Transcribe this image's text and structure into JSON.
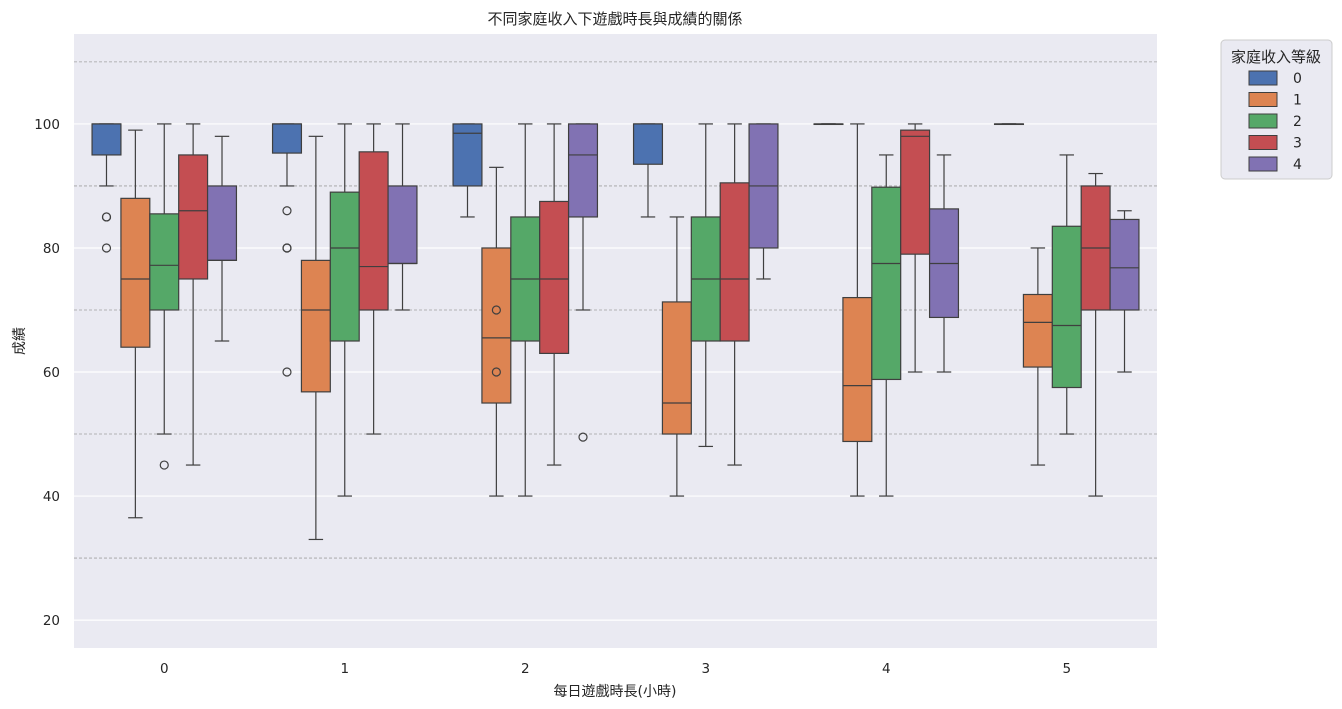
{
  "chart_data": {
    "type": "box",
    "title": "不同家庭收入下遊戲時長與成績的關係",
    "xlabel": "每日遊戲時長(小時)",
    "ylabel": "成績",
    "categories": [
      "0",
      "1",
      "2",
      "3",
      "4",
      "5"
    ],
    "ylim": [
      15.5,
      114.5
    ],
    "yticks": [
      20,
      40,
      60,
      80,
      100
    ],
    "extra_dashed_gridlines": [
      30,
      50,
      70,
      90,
      110
    ],
    "grid": true,
    "legend": {
      "title": "家庭收入等級",
      "position": "outside-top-right",
      "entries": [
        "0",
        "1",
        "2",
        "3",
        "4"
      ]
    },
    "series": [
      {
        "name": "0",
        "color": "#4c72b0",
        "boxes": [
          {
            "whisker_low": 90,
            "q1": 95,
            "median": 100,
            "q3": 100,
            "whisker_high": 100,
            "outliers": [
              85,
              85,
              80
            ]
          },
          {
            "whisker_low": 90,
            "q1": 95.3,
            "median": 100,
            "q3": 100,
            "whisker_high": 100,
            "outliers": [
              86,
              80,
              80,
              60
            ]
          },
          {
            "whisker_low": 85,
            "q1": 90,
            "median": 98.5,
            "q3": 100,
            "whisker_high": 100,
            "outliers": []
          },
          {
            "whisker_low": 85,
            "q1": 93.5,
            "median": 100,
            "q3": 100,
            "whisker_high": 100,
            "outliers": []
          },
          {
            "whisker_low": 100,
            "q1": 100,
            "median": 100,
            "q3": 100,
            "whisker_high": 100,
            "outliers": []
          },
          {
            "whisker_low": 100,
            "q1": 100,
            "median": 100,
            "q3": 100,
            "whisker_high": 100,
            "outliers": []
          }
        ]
      },
      {
        "name": "1",
        "color": "#dd8452",
        "boxes": [
          {
            "whisker_low": 36.5,
            "q1": 64,
            "median": 75,
            "q3": 88,
            "whisker_high": 99,
            "outliers": []
          },
          {
            "whisker_low": 33,
            "q1": 56.8,
            "median": 70,
            "q3": 78,
            "whisker_high": 98,
            "outliers": []
          },
          {
            "whisker_low": 40,
            "q1": 55,
            "median": 65.5,
            "q3": 80,
            "whisker_high": 93,
            "outliers": [
              70,
              60
            ]
          },
          {
            "whisker_low": 40,
            "q1": 50,
            "median": 55,
            "q3": 71.3,
            "whisker_high": 85,
            "outliers": []
          },
          {
            "whisker_low": 40,
            "q1": 48.8,
            "median": 57.8,
            "q3": 72,
            "whisker_high": 100,
            "outliers": []
          },
          {
            "whisker_low": 45,
            "q1": 60.8,
            "median": 68,
            "q3": 72.5,
            "whisker_high": 80,
            "outliers": []
          }
        ]
      },
      {
        "name": "2",
        "color": "#55a868",
        "boxes": [
          {
            "whisker_low": 50,
            "q1": 70,
            "median": 77.2,
            "q3": 85.5,
            "whisker_high": 100,
            "outliers": [
              45
            ]
          },
          {
            "whisker_low": 40,
            "q1": 65,
            "median": 80,
            "q3": 89,
            "whisker_high": 100,
            "outliers": []
          },
          {
            "whisker_low": 40,
            "q1": 65,
            "median": 75,
            "q3": 85,
            "whisker_high": 100,
            "outliers": []
          },
          {
            "whisker_low": 48,
            "q1": 65,
            "median": 75,
            "q3": 85,
            "whisker_high": 100,
            "outliers": []
          },
          {
            "whisker_low": 40,
            "q1": 58.8,
            "median": 77.5,
            "q3": 89.8,
            "whisker_high": 95,
            "outliers": []
          },
          {
            "whisker_low": 50,
            "q1": 57.5,
            "median": 67.5,
            "q3": 83.5,
            "whisker_high": 95,
            "outliers": []
          }
        ]
      },
      {
        "name": "3",
        "color": "#c44e52",
        "boxes": [
          {
            "whisker_low": 45,
            "q1": 75,
            "median": 86,
            "q3": 95,
            "whisker_high": 100,
            "outliers": []
          },
          {
            "whisker_low": 50,
            "q1": 70,
            "median": 77,
            "q3": 95.5,
            "whisker_high": 100,
            "outliers": []
          },
          {
            "whisker_low": 45,
            "q1": 63,
            "median": 75,
            "q3": 87.5,
            "whisker_high": 100,
            "outliers": []
          },
          {
            "whisker_low": 45,
            "q1": 65,
            "median": 75,
            "q3": 90.5,
            "whisker_high": 100,
            "outliers": []
          },
          {
            "whisker_low": 60,
            "q1": 79,
            "median": 98,
            "q3": 99,
            "whisker_high": 100,
            "outliers": []
          },
          {
            "whisker_low": 40,
            "q1": 70,
            "median": 80,
            "q3": 90,
            "whisker_high": 92,
            "outliers": []
          }
        ]
      },
      {
        "name": "4",
        "color": "#8172b3",
        "boxes": [
          {
            "whisker_low": 65,
            "q1": 78,
            "median": 78,
            "q3": 90,
            "whisker_high": 98,
            "outliers": []
          },
          {
            "whisker_low": 70,
            "q1": 77.5,
            "median": 77.5,
            "q3": 90,
            "whisker_high": 100,
            "outliers": []
          },
          {
            "whisker_low": 70,
            "q1": 85,
            "median": 95,
            "q3": 100,
            "whisker_high": 100,
            "outliers": [
              49.5
            ]
          },
          {
            "whisker_low": 75,
            "q1": 80,
            "median": 90,
            "q3": 100,
            "whisker_high": 100,
            "outliers": []
          },
          {
            "whisker_low": 60,
            "q1": 68.8,
            "median": 77.5,
            "q3": 86.3,
            "whisker_high": 95,
            "outliers": []
          },
          {
            "whisker_low": 60,
            "q1": 70,
            "median": 76.8,
            "q3": 84.6,
            "whisker_high": 86,
            "outliers": []
          }
        ]
      }
    ]
  }
}
